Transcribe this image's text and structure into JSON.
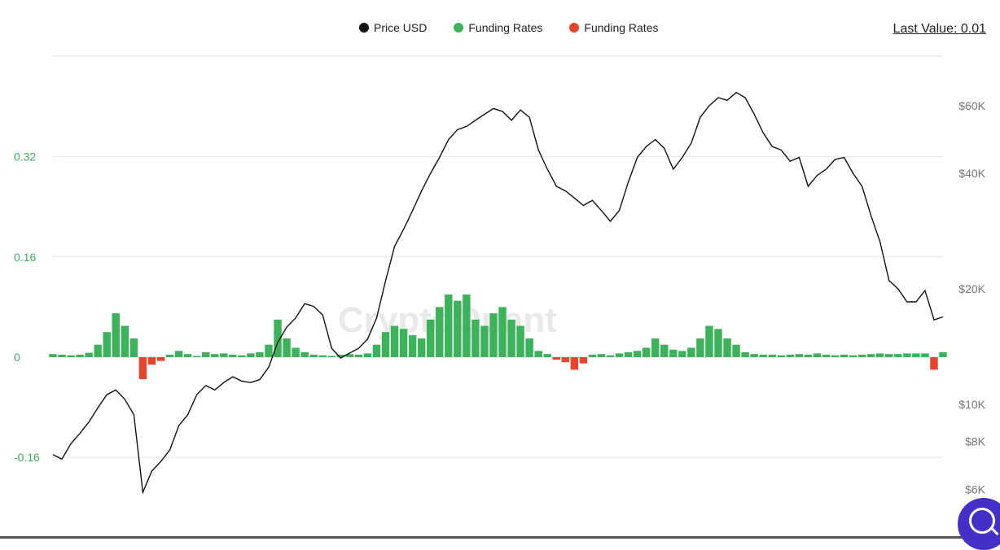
{
  "legend": {
    "price_label": "Price USD",
    "funding_pos_label": "Funding Rates",
    "funding_neg_label": "Funding Rates"
  },
  "last_value": "Last Value: 0.01",
  "watermark": "CryptoQuant",
  "colors": {
    "price": "#111111",
    "funding_positive": "#3cb35a",
    "funding_negative": "#e8442d",
    "left_axis_text": "#3cb35a",
    "right_axis_text": "#777777",
    "grid": "#e6e6e6",
    "help_button": "#4430c9"
  },
  "icons": {
    "help": "chat-search-icon"
  },
  "chart_data": {
    "type": "line+bar",
    "left_axis": {
      "ticks": [
        0.32,
        0.16,
        0,
        -0.16
      ],
      "tick_labels": [
        "0.32",
        "0.16",
        "0",
        "-0.16"
      ],
      "range": [
        -0.27,
        0.51
      ]
    },
    "right_axis": {
      "scale": "log",
      "ticks": [
        60000,
        40000,
        20000,
        10000,
        8000,
        6000
      ],
      "tick_labels": [
        "$60K",
        "$40K",
        "$20K",
        "$10K",
        "$8K",
        "$6K"
      ],
      "range": [
        5200,
        90000
      ]
    },
    "x_count": 100,
    "series": [
      {
        "name": "Price USD",
        "type": "line",
        "axis": "right",
        "values": [
          7400,
          7200,
          7900,
          8400,
          9000,
          9800,
          10600,
          10900,
          10300,
          9400,
          5900,
          6700,
          7100,
          7600,
          8800,
          9400,
          10600,
          11200,
          10900,
          11400,
          11800,
          11500,
          11400,
          11600,
          12500,
          14500,
          15900,
          16800,
          18300,
          18000,
          17100,
          14000,
          13200,
          13600,
          14000,
          14800,
          16800,
          21000,
          25800,
          28600,
          32000,
          36000,
          40000,
          44000,
          49000,
          52000,
          53000,
          55000,
          57000,
          59000,
          58000,
          55000,
          58500,
          56000,
          46000,
          41000,
          37000,
          36000,
          34500,
          33000,
          34000,
          32000,
          30000,
          32000,
          38000,
          44000,
          47000,
          49000,
          46500,
          41000,
          44000,
          48000,
          56000,
          60000,
          63000,
          62000,
          65000,
          63000,
          57000,
          51000,
          47000,
          46000,
          43000,
          44000,
          37000,
          39500,
          41000,
          43500,
          44000,
          40000,
          37000,
          31000,
          26500,
          21000,
          20000,
          18500,
          18500,
          19800,
          16600,
          16900
        ]
      },
      {
        "name": "Funding Rates",
        "type": "bar",
        "axis": "left",
        "values": [
          0.005,
          0.004,
          0.003,
          0.004,
          0.007,
          0.02,
          0.04,
          0.07,
          0.05,
          0.03,
          -0.035,
          -0.012,
          -0.006,
          0.004,
          0.01,
          0.005,
          0.002,
          0.008,
          0.005,
          0.006,
          0.004,
          0.003,
          0.006,
          0.008,
          0.02,
          0.06,
          0.03,
          0.015,
          0.008,
          0.004,
          0.003,
          0.002,
          0.004,
          0.005,
          0.004,
          0.006,
          0.02,
          0.04,
          0.05,
          0.045,
          0.035,
          0.03,
          0.06,
          0.08,
          0.1,
          0.09,
          0.1,
          0.06,
          0.05,
          0.07,
          0.08,
          0.06,
          0.05,
          0.03,
          0.01,
          0.005,
          -0.004,
          -0.008,
          -0.02,
          -0.01,
          0.004,
          0.005,
          0.003,
          0.006,
          0.008,
          0.01,
          0.015,
          0.03,
          0.02,
          0.012,
          0.01,
          0.015,
          0.03,
          0.05,
          0.045,
          0.03,
          0.02,
          0.008,
          0.005,
          0.004,
          0.004,
          0.003,
          0.004,
          0.005,
          0.004,
          0.006,
          0.004,
          0.003,
          0.004,
          0.003,
          0.004,
          0.005,
          0.006,
          0.005,
          0.005,
          0.006,
          0.006,
          0.006,
          -0.02,
          0.008
        ]
      }
    ],
    "legend_position": "top-center",
    "grid": true
  }
}
